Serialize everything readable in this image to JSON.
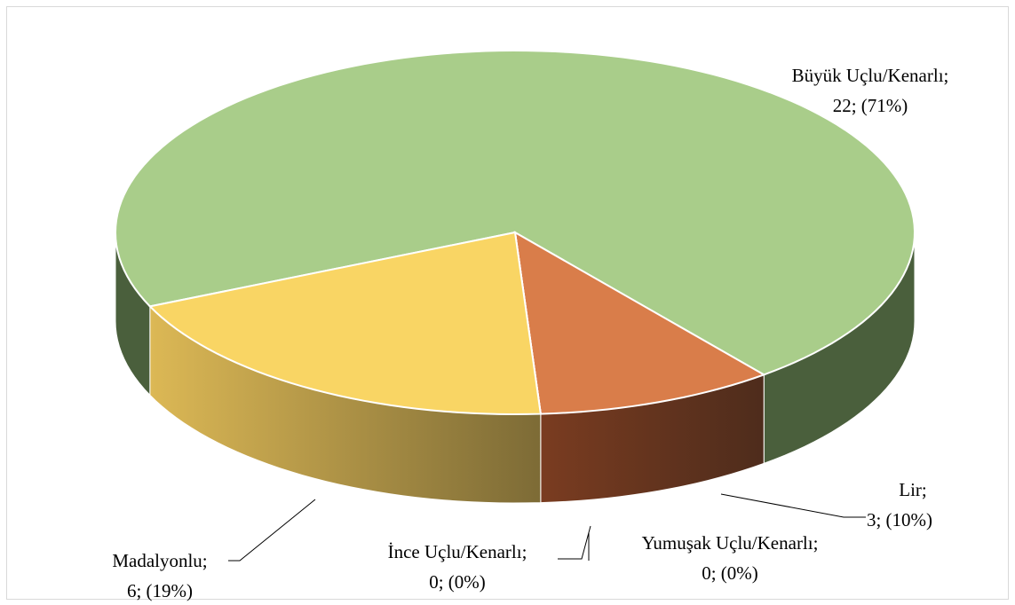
{
  "chart_data": {
    "type": "pie3d",
    "categories": [
      "Büyük Uçlu/Kenarlı;",
      "Lir;",
      "Yumuşak Uçlu/Kenarlı;",
      "İnce Uçlu/Kenarlı;",
      "Madalyonlu;"
    ],
    "values": [
      22,
      3,
      0,
      0,
      6
    ],
    "value_labels": [
      "22; (71%)",
      "3; (10%)",
      "0; (0%)",
      "0; (0%)",
      "6; (19%)"
    ],
    "colors": [
      "#a9cd8a",
      "#d97d4a",
      "#4f81bd",
      "#8064a2",
      "#f9d564"
    ],
    "side_colors": [
      "#4a5f3c",
      "#6e3a1f",
      "#2c4a70",
      "#4a3a60",
      "#a89048"
    ]
  }
}
